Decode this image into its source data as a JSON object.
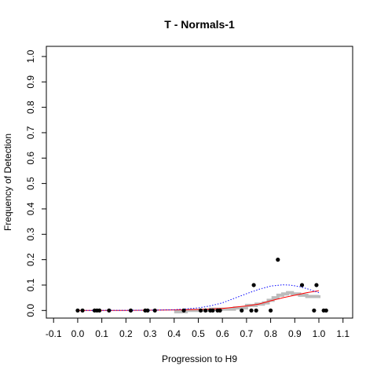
{
  "chart_data": {
    "type": "scatter",
    "title": "T - Normals-1",
    "xlabel": "Progression to H9",
    "ylabel": "Frequency of Detection",
    "xlim": [
      -0.13,
      1.14
    ],
    "ylim": [
      -0.03,
      1.04
    ],
    "x_ticks": [
      "-0.1",
      "0.0",
      "0.1",
      "0.2",
      "0.3",
      "0.4",
      "0.5",
      "0.6",
      "0.7",
      "0.8",
      "0.9",
      "1.0",
      "1.1"
    ],
    "y_ticks": [
      "0.0",
      "0.1",
      "0.2",
      "0.3",
      "0.4",
      "0.5",
      "0.6",
      "0.7",
      "0.8",
      "0.9",
      "1.0"
    ],
    "grid": false,
    "series": [
      {
        "kind": "points",
        "color": "#000000",
        "points": [
          [
            0.0,
            0.0
          ],
          [
            0.02,
            0.0
          ],
          [
            0.07,
            0.0
          ],
          [
            0.08,
            0.0
          ],
          [
            0.09,
            0.0
          ],
          [
            0.13,
            0.0
          ],
          [
            0.22,
            0.0
          ],
          [
            0.28,
            0.0
          ],
          [
            0.29,
            0.0
          ],
          [
            0.32,
            0.0
          ],
          [
            0.44,
            0.0
          ],
          [
            0.51,
            0.0
          ],
          [
            0.53,
            0.0
          ],
          [
            0.55,
            0.0
          ],
          [
            0.56,
            0.0
          ],
          [
            0.58,
            0.0
          ],
          [
            0.59,
            0.0
          ],
          [
            0.68,
            0.0
          ],
          [
            0.72,
            0.0
          ],
          [
            0.73,
            0.1
          ],
          [
            0.74,
            0.0
          ],
          [
            0.83,
            0.2
          ],
          [
            0.8,
            0.0
          ],
          [
            0.93,
            0.1
          ],
          [
            0.98,
            0.0
          ],
          [
            0.99,
            0.1
          ],
          [
            1.02,
            0.0
          ],
          [
            1.03,
            0.0
          ]
        ]
      },
      {
        "kind": "step",
        "color": "#bbbbbb",
        "points": [
          [
            0.4,
            -0.005
          ],
          [
            0.45,
            0.0
          ],
          [
            0.5,
            0.0
          ],
          [
            0.55,
            0.005
          ],
          [
            0.6,
            0.005
          ],
          [
            0.65,
            0.01
          ],
          [
            0.7,
            0.02
          ],
          [
            0.74,
            0.025
          ],
          [
            0.77,
            0.03
          ],
          [
            0.79,
            0.04
          ],
          [
            0.81,
            0.05
          ],
          [
            0.83,
            0.06
          ],
          [
            0.85,
            0.065
          ],
          [
            0.87,
            0.07
          ],
          [
            0.89,
            0.065
          ],
          [
            0.92,
            0.06
          ],
          [
            0.95,
            0.055
          ],
          [
            0.98,
            0.055
          ],
          [
            1.0,
            0.06
          ]
        ]
      },
      {
        "kind": "line",
        "color": "#ff0000",
        "points": [
          [
            0.0,
            0.0
          ],
          [
            0.2,
            0.0
          ],
          [
            0.4,
            0.002
          ],
          [
            0.5,
            0.004
          ],
          [
            0.6,
            0.008
          ],
          [
            0.7,
            0.018
          ],
          [
            0.75,
            0.025
          ],
          [
            0.8,
            0.038
          ],
          [
            0.85,
            0.05
          ],
          [
            0.9,
            0.06
          ],
          [
            0.95,
            0.07
          ],
          [
            1.0,
            0.078
          ]
        ]
      },
      {
        "kind": "dotted",
        "color": "#0000ff",
        "points": [
          [
            0.0,
            0.0
          ],
          [
            0.3,
            0.001
          ],
          [
            0.4,
            0.003
          ],
          [
            0.5,
            0.01
          ],
          [
            0.55,
            0.018
          ],
          [
            0.6,
            0.03
          ],
          [
            0.65,
            0.048
          ],
          [
            0.7,
            0.066
          ],
          [
            0.75,
            0.083
          ],
          [
            0.8,
            0.096
          ],
          [
            0.85,
            0.101
          ],
          [
            0.88,
            0.1
          ],
          [
            0.92,
            0.094
          ],
          [
            0.96,
            0.083
          ],
          [
            1.0,
            0.07
          ]
        ]
      }
    ]
  }
}
